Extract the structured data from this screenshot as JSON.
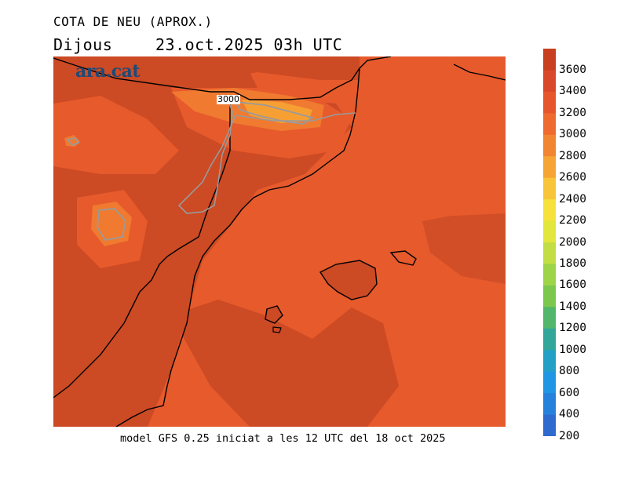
{
  "header": {
    "title": "COTA DE NEU (APROX.)",
    "day": "Dijous",
    "datetime": "23.oct.2025 03h UTC"
  },
  "logo": {
    "text": "ara.cat"
  },
  "map": {
    "contour_label": "3000",
    "colors": {
      "deep": "#cc4a24",
      "mid": "#e65a2c",
      "light": "#f07a30",
      "bright": "#f6a034",
      "border": "#000000",
      "contour": "#9a9a9a"
    }
  },
  "colorbar": {
    "labels": [
      "3600",
      "3400",
      "3200",
      "3000",
      "2800",
      "2600",
      "2400",
      "2200",
      "2000",
      "1800",
      "1600",
      "1400",
      "1200",
      "1000",
      "800",
      "600",
      "400",
      "200"
    ],
    "colors": [
      "#c8401f",
      "#d9482a",
      "#e6552c",
      "#ef6a2f",
      "#f28532",
      "#f6a434",
      "#f8c53a",
      "#f6e23a",
      "#e3e63c",
      "#c2de44",
      "#9dd448",
      "#7cc84e",
      "#52b76a",
      "#33a69a",
      "#23a0c6",
      "#2196e4",
      "#2681dc",
      "#2f6bcf"
    ]
  },
  "footer": {
    "text": "model GFS 0.25 iniciat a les 12 UTC del 18 oct 2025"
  }
}
